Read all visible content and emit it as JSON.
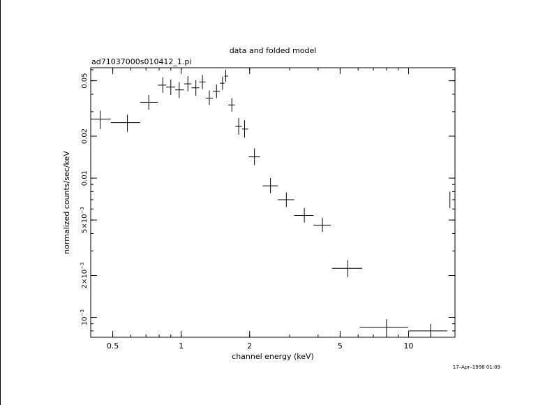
{
  "chart_data": {
    "type": "scatter",
    "title": "data and folded model",
    "subtitle": "ad71037000s010412_1.pi",
    "xlabel": "channel energy (keV)",
    "ylabel": "normalized counts/sec/keV",
    "timestamp": "17–Apr–1998 01:09",
    "xscale": "log",
    "yscale": "log",
    "xlim": [
      0.4,
      16.0
    ],
    "ylim": [
      0.00072,
      0.062
    ],
    "x_ticks": [
      {
        "v": 0.5,
        "label": "0.5"
      },
      {
        "v": 1,
        "label": "1"
      },
      {
        "v": 2,
        "label": "2"
      },
      {
        "v": 5,
        "label": "5"
      },
      {
        "v": 10,
        "label": "10"
      }
    ],
    "y_ticks": [
      {
        "v": 0.05,
        "base": "0.05",
        "exp": ""
      },
      {
        "v": 0.02,
        "base": "0.02",
        "exp": ""
      },
      {
        "v": 0.01,
        "base": "0.01",
        "exp": ""
      },
      {
        "v": 0.005,
        "base": "5×10",
        "exp": "−3"
      },
      {
        "v": 0.002,
        "base": "2×10",
        "exp": "−3"
      },
      {
        "v": 0.001,
        "base": "10",
        "exp": "−3"
      }
    ],
    "series": [
      {
        "points": [
          {
            "x": 0.44,
            "xlo": 0.4,
            "xhi": 0.49,
            "y": 0.0265,
            "ylo": 0.0225,
            "yhi": 0.0305
          },
          {
            "x": 0.58,
            "xlo": 0.49,
            "xhi": 0.66,
            "y": 0.025,
            "ylo": 0.0215,
            "yhi": 0.0285
          },
          {
            "x": 0.72,
            "xlo": 0.66,
            "xhi": 0.79,
            "y": 0.035,
            "ylo": 0.031,
            "yhi": 0.0395
          },
          {
            "x": 0.83,
            "xlo": 0.79,
            "xhi": 0.86,
            "y": 0.0465,
            "ylo": 0.041,
            "yhi": 0.053
          },
          {
            "x": 0.9,
            "xlo": 0.86,
            "xhi": 0.94,
            "y": 0.045,
            "ylo": 0.0395,
            "yhi": 0.051
          },
          {
            "x": 0.98,
            "xlo": 0.94,
            "xhi": 1.03,
            "y": 0.043,
            "ylo": 0.0375,
            "yhi": 0.049
          },
          {
            "x": 1.07,
            "xlo": 1.03,
            "xhi": 1.11,
            "y": 0.0475,
            "ylo": 0.042,
            "yhi": 0.054
          },
          {
            "x": 1.16,
            "xlo": 1.11,
            "xhi": 1.2,
            "y": 0.0445,
            "ylo": 0.039,
            "yhi": 0.0505
          },
          {
            "x": 1.24,
            "xlo": 1.2,
            "xhi": 1.28,
            "y": 0.049,
            "ylo": 0.0435,
            "yhi": 0.055
          },
          {
            "x": 1.33,
            "xlo": 1.28,
            "xhi": 1.38,
            "y": 0.0375,
            "ylo": 0.0335,
            "yhi": 0.0425
          },
          {
            "x": 1.43,
            "xlo": 1.38,
            "xhi": 1.48,
            "y": 0.042,
            "ylo": 0.0375,
            "yhi": 0.047
          },
          {
            "x": 1.52,
            "xlo": 1.48,
            "xhi": 1.55,
            "y": 0.048,
            "ylo": 0.043,
            "yhi": 0.0535
          },
          {
            "x": 1.57,
            "xlo": 1.55,
            "xhi": 1.61,
            "y": 0.054,
            "ylo": 0.049,
            "yhi": 0.06
          },
          {
            "x": 1.67,
            "xlo": 1.61,
            "xhi": 1.72,
            "y": 0.0335,
            "ylo": 0.03,
            "yhi": 0.0375
          },
          {
            "x": 1.79,
            "xlo": 1.73,
            "xhi": 1.85,
            "y": 0.0235,
            "ylo": 0.0205,
            "yhi": 0.027
          },
          {
            "x": 1.9,
            "xlo": 1.85,
            "xhi": 1.97,
            "y": 0.0225,
            "ylo": 0.0195,
            "yhi": 0.026
          },
          {
            "x": 2.1,
            "xlo": 1.98,
            "xhi": 2.22,
            "y": 0.0142,
            "ylo": 0.0124,
            "yhi": 0.0163
          },
          {
            "x": 2.47,
            "xlo": 2.28,
            "xhi": 2.66,
            "y": 0.0088,
            "ylo": 0.0078,
            "yhi": 0.01
          },
          {
            "x": 2.9,
            "xlo": 2.66,
            "xhi": 3.14,
            "y": 0.007,
            "ylo": 0.0062,
            "yhi": 0.0079
          },
          {
            "x": 3.48,
            "xlo": 3.14,
            "xhi": 3.82,
            "y": 0.0054,
            "ylo": 0.0048,
            "yhi": 0.0061
          },
          {
            "x": 4.18,
            "xlo": 3.82,
            "xhi": 4.55,
            "y": 0.0046,
            "ylo": 0.0041,
            "yhi": 0.0052
          },
          {
            "x": 5.4,
            "xlo": 4.6,
            "xhi": 6.25,
            "y": 0.00225,
            "ylo": 0.00195,
            "yhi": 0.00258
          },
          {
            "x": 8.0,
            "xlo": 6.1,
            "xhi": 9.95,
            "y": 0.00085,
            "ylo": 0.00075,
            "yhi": 0.00097
          },
          {
            "x": 12.5,
            "xlo": 10.0,
            "xhi": 14.8,
            "y": 0.0008,
            "ylo": 0.00072,
            "yhi": 0.0009
          },
          {
            "x": 15.2,
            "xlo": 15.15,
            "xhi": 15.25,
            "y": 0.007,
            "ylo": 0.0061,
            "yhi": 0.008
          }
        ]
      }
    ]
  }
}
